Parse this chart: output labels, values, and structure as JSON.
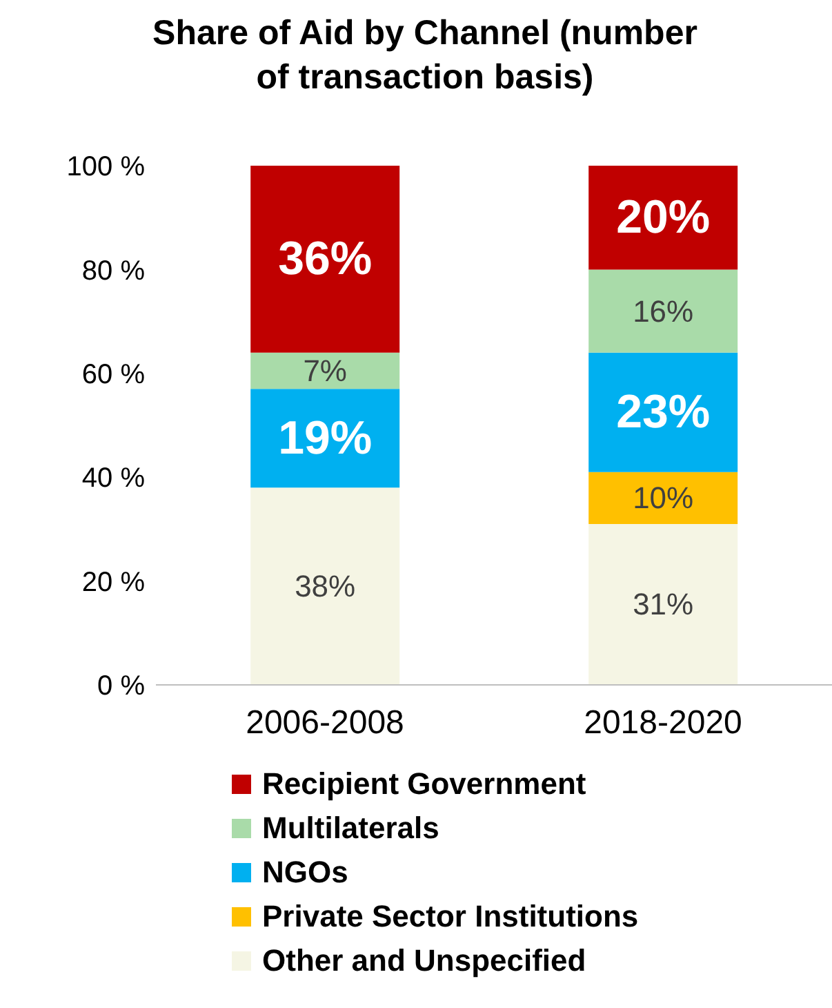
{
  "chart_data": {
    "type": "bar",
    "title": "Share of Aid by Channel (number of transaction basis)",
    "categories": [
      "2006-2008",
      "2018-2020"
    ],
    "stacked": true,
    "series": [
      {
        "name": "Other and Unspecified",
        "color": "#f5f5e4",
        "values": [
          38,
          31
        ],
        "value_labels": [
          "38%",
          "31%"
        ]
      },
      {
        "name": "Private Sector Institutions",
        "color": "#ffc000",
        "values": [
          null,
          10
        ],
        "value_labels": [
          null,
          "10%"
        ]
      },
      {
        "name": "NGOs",
        "color": "#00b0f0",
        "values": [
          19,
          23
        ],
        "value_labels": [
          "19%",
          "23%"
        ]
      },
      {
        "name": "Multilaterals",
        "color": "#a9dba9",
        "values": [
          7,
          16
        ],
        "value_labels": [
          "7%",
          "16%"
        ]
      },
      {
        "name": "Recipient Government",
        "color": "#c00000",
        "values": [
          36,
          20
        ],
        "value_labels": [
          "36%",
          "20%"
        ]
      }
    ],
    "ylim": [
      0,
      100
    ],
    "yticks": [
      {
        "value": 0,
        "label": "0 %"
      },
      {
        "value": 20,
        "label": "20 %"
      },
      {
        "value": 40,
        "label": "40 %"
      },
      {
        "value": 60,
        "label": "60 %"
      },
      {
        "value": 80,
        "label": "80 %"
      },
      {
        "value": 100,
        "label": "100 %"
      }
    ],
    "grid": false,
    "legend": "bottom"
  }
}
